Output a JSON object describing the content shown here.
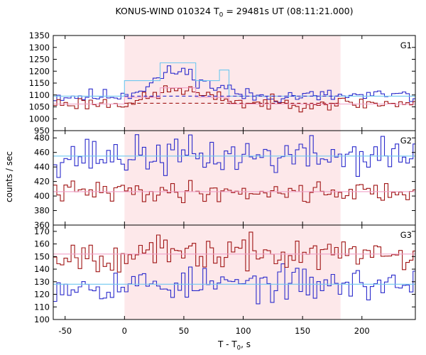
{
  "title": {
    "text": "KONUS-WIND 010324 T",
    "sub": "0",
    "rest": " = 29481s UT (08:11:21.000)"
  },
  "ylabel": "counts / sec",
  "xlabel": {
    "text": "T - T",
    "sub": "0",
    "rest": ", s"
  },
  "colors": {
    "blue": "#2b2bcc",
    "red": "#a01414",
    "lightblue": "#6fc8f0",
    "pink": "#f0a0c8",
    "shade": "#fde8ea"
  },
  "chart_data": {
    "type": "line",
    "x_range": [
      -60,
      245
    ],
    "x_ticks": [
      -50,
      0,
      50,
      100,
      150,
      200
    ],
    "shaded_interval": [
      0,
      182
    ],
    "bin_width": 3,
    "panels": [
      {
        "label": "G1",
        "y_range": [
          950,
          1350
        ],
        "y_ticks": [
          950,
          1000,
          1050,
          1100,
          1150,
          1200,
          1250,
          1300,
          1350
        ],
        "series": [
          {
            "name": "blue",
            "baseline": 1095,
            "noise": 15,
            "peaks": [
              [
                45,
                1200,
                20
              ],
              [
                85,
                1120,
                6
              ]
            ],
            "seed": 11
          },
          {
            "name": "red",
            "baseline": 1065,
            "noise": 14,
            "peaks": [
              [
                45,
                1125,
                18
              ],
              [
                85,
                1085,
                6
              ]
            ],
            "seed": 23
          }
        ],
        "fits": [
          {
            "color": "lightblue",
            "points": [
              [
                -60,
                1095
              ],
              [
                0,
                1095
              ],
              [
                0,
                1160
              ],
              [
                30,
                1160
              ],
              [
                30,
                1235
              ],
              [
                60,
                1235
              ],
              [
                60,
                1160
              ],
              [
                80,
                1160
              ],
              [
                80,
                1205
              ],
              [
                88,
                1205
              ],
              [
                88,
                1095
              ],
              [
                245,
                1095
              ]
            ]
          },
          {
            "color": "pink",
            "points": [
              [
                -60,
                1062
              ],
              [
                0,
                1062
              ],
              [
                0,
                1090
              ],
              [
                30,
                1090
              ],
              [
                30,
                1130
              ],
              [
                60,
                1130
              ],
              [
                60,
                1090
              ],
              [
                88,
                1090
              ],
              [
                88,
                1062
              ],
              [
                245,
                1062
              ]
            ]
          }
        ],
        "bg_dashed": [
          {
            "color": "blue",
            "value": 1095,
            "from": 0,
            "to": 182
          },
          {
            "color": "red",
            "value": 1065,
            "from": 0,
            "to": 182
          }
        ]
      },
      {
        "label": "G2",
        "y_range": [
          360,
          490
        ],
        "y_ticks": [
          360,
          380,
          400,
          420,
          440,
          460,
          480
        ],
        "series": [
          {
            "name": "blue",
            "baseline": 455,
            "noise": 13,
            "peaks": [],
            "seed": 37
          },
          {
            "name": "red",
            "baseline": 406,
            "noise": 7,
            "peaks": [],
            "seed": 41
          }
        ],
        "fits": [
          {
            "color": "lightblue",
            "points": [
              [
                -60,
                455
              ],
              [
                245,
                455
              ]
            ]
          },
          {
            "color": "pink",
            "points": [
              [
                -60,
                406
              ],
              [
                245,
                406
              ]
            ]
          }
        ],
        "bg_dashed": []
      },
      {
        "label": "G3",
        "y_range": [
          100,
          175
        ],
        "y_ticks": [
          100,
          110,
          120,
          130,
          140,
          150,
          160,
          170
        ],
        "series": [
          {
            "name": "blue",
            "baseline": 128,
            "noise": 6.5,
            "peaks": [],
            "seed": 53
          },
          {
            "name": "red",
            "baseline": 152,
            "noise": 6.5,
            "peaks": [],
            "seed": 67
          }
        ],
        "fits": [
          {
            "color": "lightblue",
            "points": [
              [
                -60,
                128
              ],
              [
                245,
                128
              ]
            ]
          },
          {
            "color": "pink",
            "points": [
              [
                -60,
                152
              ],
              [
                245,
                152
              ]
            ]
          }
        ],
        "bg_dashed": []
      }
    ]
  }
}
